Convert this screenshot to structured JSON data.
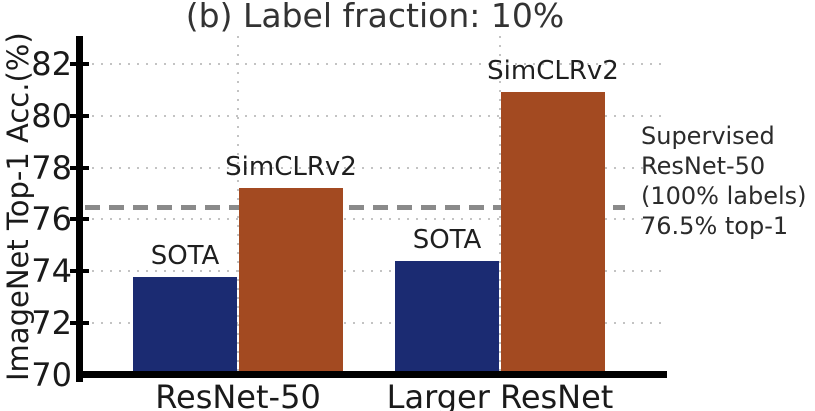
{
  "chart_data": {
    "type": "bar",
    "title": "(b) Label fraction: 10%",
    "ylabel": "ImageNet Top-1 Acc.(%)",
    "xlabel": "",
    "categories": [
      "ResNet-50",
      "Larger ResNet"
    ],
    "series": [
      {
        "name": "SOTA",
        "color": "#1b2b72",
        "values": [
          73.8,
          74.4
        ]
      },
      {
        "name": "SimCLRv2",
        "color": "#a34a21",
        "values": [
          77.2,
          80.9
        ]
      }
    ],
    "yticks": [
      70,
      72,
      74,
      76,
      78,
      80,
      82
    ],
    "ylim": [
      70,
      83.1
    ],
    "grid": true,
    "legend_position": "labels-above-bars",
    "reference_line": {
      "value": 76.5,
      "style": "dashed",
      "color": "#8a8a8a",
      "annotation_lines": [
        "Supervised",
        "ResNet-50",
        "(100% labels)",
        "76.5% top-1"
      ]
    }
  }
}
